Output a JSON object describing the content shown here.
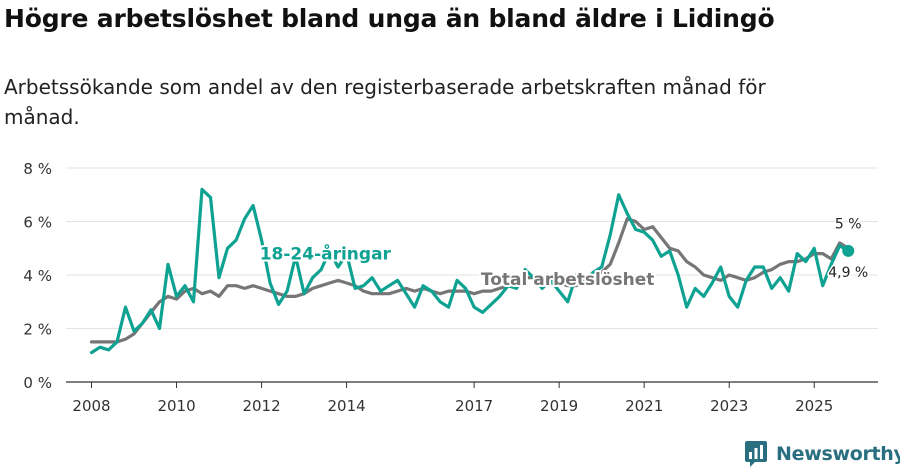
{
  "title": "Högre arbetslöshet bland unga än bland äldre i Lidingö",
  "subtitle": "Arbetssökande som andel av den registerbaserade arbetskraften månad för månad.",
  "brand": {
    "name": "Newsworthy",
    "icon": "newsworthy-logo-icon",
    "color": "#2a6f80"
  },
  "colors": {
    "youth": "#0ea293",
    "total": "#767676",
    "grid": "#e3e3e3",
    "axis": "#333333"
  },
  "chart_data": {
    "type": "line",
    "title": "Högre arbetslöshet bland unga än bland äldre i Lidingö",
    "subtitle": "Arbetssökande som andel av den registerbaserade arbetskraften månad för månad.",
    "xlabel": "",
    "ylabel": "",
    "xlim": [
      2007.4,
      2026.5
    ],
    "ylim": [
      0,
      8
    ],
    "grid": true,
    "y_ticks": [
      0,
      2,
      4,
      6,
      8
    ],
    "y_tick_labels": [
      "0 %",
      "2 %",
      "4 %",
      "6 %",
      "8 %"
    ],
    "x_ticks": [
      2008,
      2010,
      2012,
      2014,
      2017,
      2019,
      2021,
      2023,
      2025
    ],
    "x_tick_labels": [
      "2008",
      "2010",
      "2012",
      "2014",
      "2017",
      "2019",
      "2021",
      "2023",
      "2025"
    ],
    "series": [
      {
        "name": "18-24-åringar",
        "color": "#0ea293",
        "x": [
          2008.0,
          2008.2,
          2008.4,
          2008.6,
          2008.8,
          2009.0,
          2009.2,
          2009.4,
          2009.6,
          2009.8,
          2010.0,
          2010.2,
          2010.4,
          2010.6,
          2010.8,
          2011.0,
          2011.2,
          2011.4,
          2011.6,
          2011.8,
          2012.0,
          2012.2,
          2012.4,
          2012.6,
          2012.8,
          2013.0,
          2013.2,
          2013.4,
          2013.6,
          2013.8,
          2014.0,
          2014.2,
          2014.4,
          2014.6,
          2014.8,
          2015.0,
          2015.2,
          2015.4,
          2015.6,
          2015.8,
          2016.0,
          2016.2,
          2016.4,
          2016.6,
          2016.8,
          2017.0,
          2017.2,
          2017.4,
          2017.6,
          2017.8,
          2018.0,
          2018.2,
          2018.4,
          2018.6,
          2018.8,
          2019.0,
          2019.2,
          2019.4,
          2019.6,
          2019.8,
          2020.0,
          2020.2,
          2020.4,
          2020.6,
          2020.8,
          2021.0,
          2021.2,
          2021.4,
          2021.6,
          2021.8,
          2022.0,
          2022.2,
          2022.4,
          2022.6,
          2022.8,
          2023.0,
          2023.2,
          2023.4,
          2023.6,
          2023.8,
          2024.0,
          2024.2,
          2024.4,
          2024.6,
          2024.8,
          2025.0,
          2025.2,
          2025.4,
          2025.6,
          2025.8
        ],
        "values": [
          1.1,
          1.3,
          1.2,
          1.5,
          2.8,
          1.9,
          2.2,
          2.7,
          2.0,
          4.4,
          3.2,
          3.6,
          3.0,
          7.2,
          6.9,
          3.9,
          5.0,
          5.3,
          6.1,
          6.6,
          5.3,
          3.7,
          2.9,
          3.4,
          4.7,
          3.3,
          3.9,
          4.2,
          4.9,
          4.3,
          4.8,
          3.5,
          3.6,
          3.9,
          3.4,
          3.6,
          3.8,
          3.3,
          2.8,
          3.6,
          3.4,
          3.0,
          2.8,
          3.8,
          3.5,
          2.8,
          2.6,
          2.9,
          3.2,
          3.6,
          3.5,
          4.2,
          3.9,
          3.5,
          3.8,
          3.4,
          3.0,
          4.0,
          3.7,
          4.1,
          4.3,
          5.5,
          7.0,
          6.3,
          5.7,
          5.6,
          5.3,
          4.7,
          4.9,
          4.0,
          2.8,
          3.5,
          3.2,
          3.7,
          4.3,
          3.2,
          2.8,
          3.8,
          4.3,
          4.3,
          3.5,
          3.9,
          3.4,
          4.8,
          4.5,
          5.0,
          3.6,
          4.4,
          5.1,
          4.9
        ]
      },
      {
        "name": "Total arbetslöshet",
        "color": "#767676",
        "x": [
          2008.0,
          2008.2,
          2008.4,
          2008.6,
          2008.8,
          2009.0,
          2009.2,
          2009.4,
          2009.6,
          2009.8,
          2010.0,
          2010.2,
          2010.4,
          2010.6,
          2010.8,
          2011.0,
          2011.2,
          2011.4,
          2011.6,
          2011.8,
          2012.0,
          2012.2,
          2012.4,
          2012.6,
          2012.8,
          2013.0,
          2013.2,
          2013.4,
          2013.6,
          2013.8,
          2014.0,
          2014.2,
          2014.4,
          2014.6,
          2014.8,
          2015.0,
          2015.2,
          2015.4,
          2015.6,
          2015.8,
          2016.0,
          2016.2,
          2016.4,
          2016.6,
          2016.8,
          2017.0,
          2017.2,
          2017.4,
          2017.6,
          2017.8,
          2018.0,
          2018.2,
          2018.4,
          2018.6,
          2018.8,
          2019.0,
          2019.2,
          2019.4,
          2019.6,
          2019.8,
          2020.0,
          2020.2,
          2020.4,
          2020.6,
          2020.8,
          2021.0,
          2021.2,
          2021.4,
          2021.6,
          2021.8,
          2022.0,
          2022.2,
          2022.4,
          2022.6,
          2022.8,
          2023.0,
          2023.2,
          2023.4,
          2023.6,
          2023.8,
          2024.0,
          2024.2,
          2024.4,
          2024.6,
          2024.8,
          2025.0,
          2025.2,
          2025.4,
          2025.6,
          2025.8
        ],
        "values": [
          1.5,
          1.5,
          1.5,
          1.5,
          1.6,
          1.8,
          2.2,
          2.6,
          3.0,
          3.2,
          3.1,
          3.4,
          3.5,
          3.3,
          3.4,
          3.2,
          3.6,
          3.6,
          3.5,
          3.6,
          3.5,
          3.4,
          3.3,
          3.2,
          3.2,
          3.3,
          3.5,
          3.6,
          3.7,
          3.8,
          3.7,
          3.6,
          3.4,
          3.3,
          3.3,
          3.3,
          3.4,
          3.5,
          3.4,
          3.5,
          3.4,
          3.3,
          3.4,
          3.4,
          3.4,
          3.3,
          3.4,
          3.4,
          3.5,
          3.6,
          3.7,
          3.9,
          3.9,
          3.8,
          3.7,
          3.7,
          3.6,
          3.6,
          3.8,
          3.9,
          4.1,
          4.4,
          5.2,
          6.1,
          6.0,
          5.7,
          5.8,
          5.4,
          5.0,
          4.9,
          4.5,
          4.3,
          4.0,
          3.9,
          3.8,
          4.0,
          3.9,
          3.8,
          3.9,
          4.1,
          4.2,
          4.4,
          4.5,
          4.5,
          4.6,
          4.8,
          4.8,
          4.6,
          5.2,
          5.0
        ]
      }
    ],
    "annotations": [
      {
        "text": "18-24-åringar",
        "series": "18-24-åringar",
        "x": 2013.5,
        "y": 4.5
      },
      {
        "text": "Total arbetslöshet",
        "series": "Total arbetslöshet",
        "x": 2019.2,
        "y": 3.85
      },
      {
        "text": "5 %",
        "series": "Total arbetslöshet",
        "x": 2025.8,
        "y": 5.0
      },
      {
        "text": "4,9 %",
        "series": "18-24-åringar",
        "x": 2025.8,
        "y": 4.9
      }
    ]
  }
}
